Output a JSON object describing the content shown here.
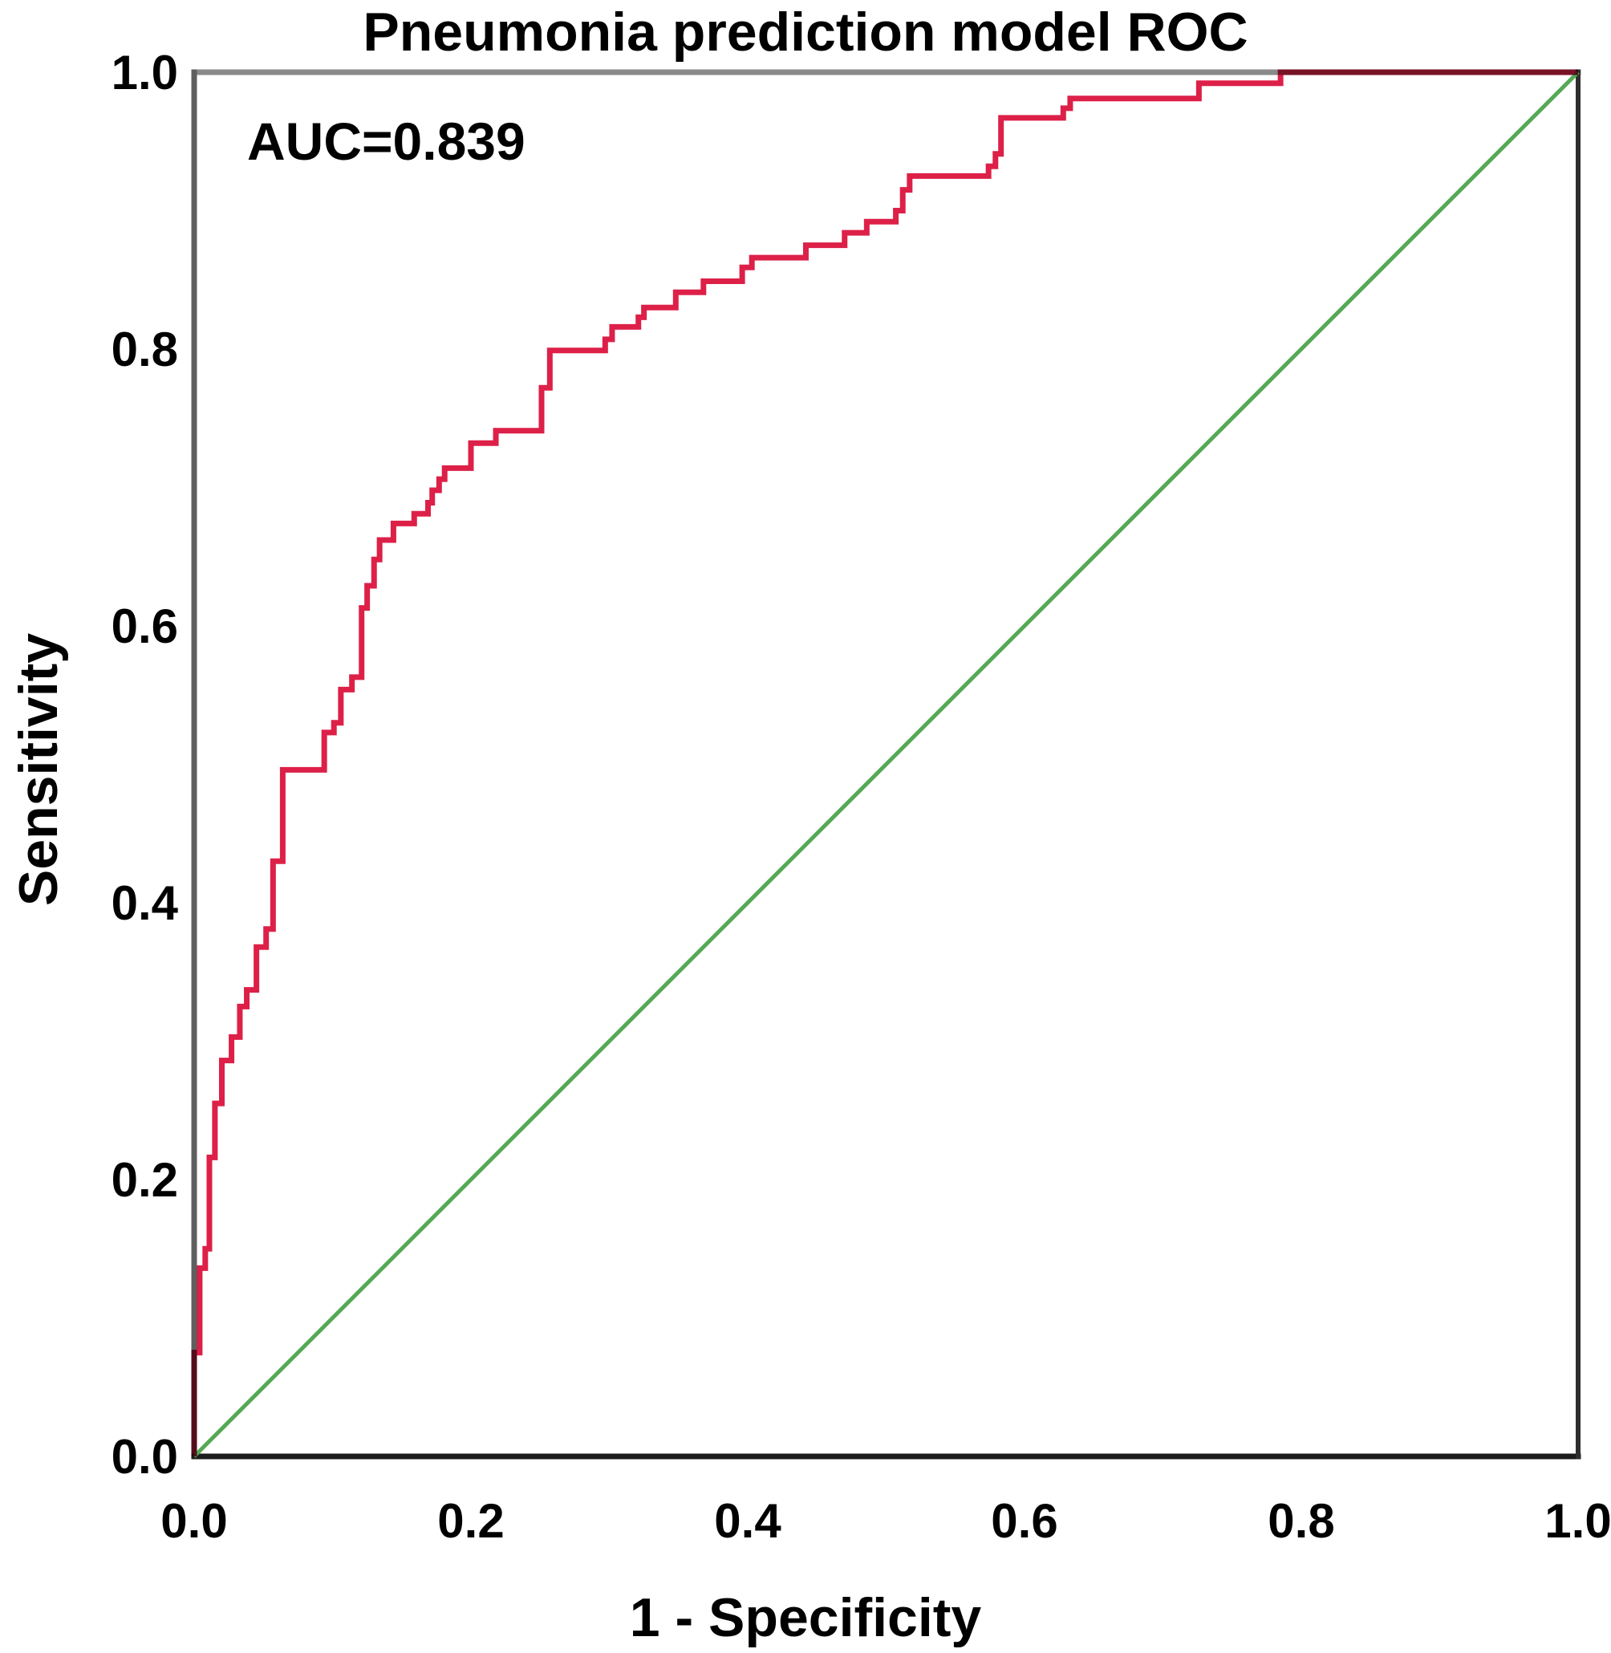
{
  "chart_data": {
    "type": "line",
    "title": "Pneumonia prediction model ROC",
    "xlabel": "1 - Specificity",
    "ylabel": "Sensitivity",
    "annotation": "AUC=0.839",
    "auc_value": 0.839,
    "xlim": [
      0.0,
      1.0
    ],
    "ylim": [
      0.0,
      1.0
    ],
    "x_ticks": [
      "0.0",
      "0.2",
      "0.4",
      "0.6",
      "0.8",
      "1.0"
    ],
    "y_ticks": [
      "0.0",
      "0.2",
      "0.4",
      "0.6",
      "0.8",
      "1.0"
    ],
    "grid": false,
    "legend": false,
    "colors": {
      "roc_curve": "#dd2048",
      "reference_line": "#55a855",
      "frame_top": "#8a8a8a",
      "frame_left": "#5f5f5f",
      "frame_bottom": "#1c1c1c",
      "frame_right": "#2e2e2e",
      "text": "#000000",
      "background": "#ffffff"
    },
    "series": [
      {
        "name": "ROC curve",
        "style": "step",
        "color_key": "roc_curve",
        "points": [
          [
            0.0,
            0.0
          ],
          [
            0.0,
            0.075
          ],
          [
            0.004,
            0.136
          ],
          [
            0.008,
            0.15
          ],
          [
            0.011,
            0.216
          ],
          [
            0.015,
            0.255
          ],
          [
            0.02,
            0.286
          ],
          [
            0.027,
            0.303
          ],
          [
            0.033,
            0.325
          ],
          [
            0.038,
            0.337
          ],
          [
            0.045,
            0.368
          ],
          [
            0.052,
            0.381
          ],
          [
            0.057,
            0.43
          ],
          [
            0.064,
            0.496
          ],
          [
            0.094,
            0.523
          ],
          [
            0.101,
            0.53
          ],
          [
            0.106,
            0.554
          ],
          [
            0.114,
            0.563
          ],
          [
            0.121,
            0.613
          ],
          [
            0.125,
            0.629
          ],
          [
            0.13,
            0.648
          ],
          [
            0.134,
            0.662
          ],
          [
            0.144,
            0.674
          ],
          [
            0.159,
            0.681
          ],
          [
            0.169,
            0.689
          ],
          [
            0.172,
            0.698
          ],
          [
            0.177,
            0.706
          ],
          [
            0.181,
            0.714
          ],
          [
            0.2,
            0.732
          ],
          [
            0.218,
            0.741
          ],
          [
            0.251,
            0.772
          ],
          [
            0.257,
            0.799
          ],
          [
            0.297,
            0.807
          ],
          [
            0.302,
            0.816
          ],
          [
            0.321,
            0.823
          ],
          [
            0.325,
            0.83
          ],
          [
            0.348,
            0.841
          ],
          [
            0.368,
            0.849
          ],
          [
            0.396,
            0.859
          ],
          [
            0.403,
            0.866
          ],
          [
            0.442,
            0.875
          ],
          [
            0.47,
            0.884
          ],
          [
            0.486,
            0.892
          ],
          [
            0.507,
            0.9
          ],
          [
            0.512,
            0.915
          ],
          [
            0.517,
            0.925
          ],
          [
            0.574,
            0.932
          ],
          [
            0.579,
            0.941
          ],
          [
            0.583,
            0.967
          ],
          [
            0.628,
            0.974
          ],
          [
            0.633,
            0.981
          ],
          [
            0.726,
            0.992
          ],
          [
            0.785,
            1.0
          ],
          [
            1.0,
            1.0
          ]
        ]
      },
      {
        "name": "Reference diagonal",
        "style": "line",
        "color_key": "reference_line",
        "points": [
          [
            0.0,
            0.0
          ],
          [
            1.0,
            1.0
          ]
        ]
      }
    ]
  }
}
